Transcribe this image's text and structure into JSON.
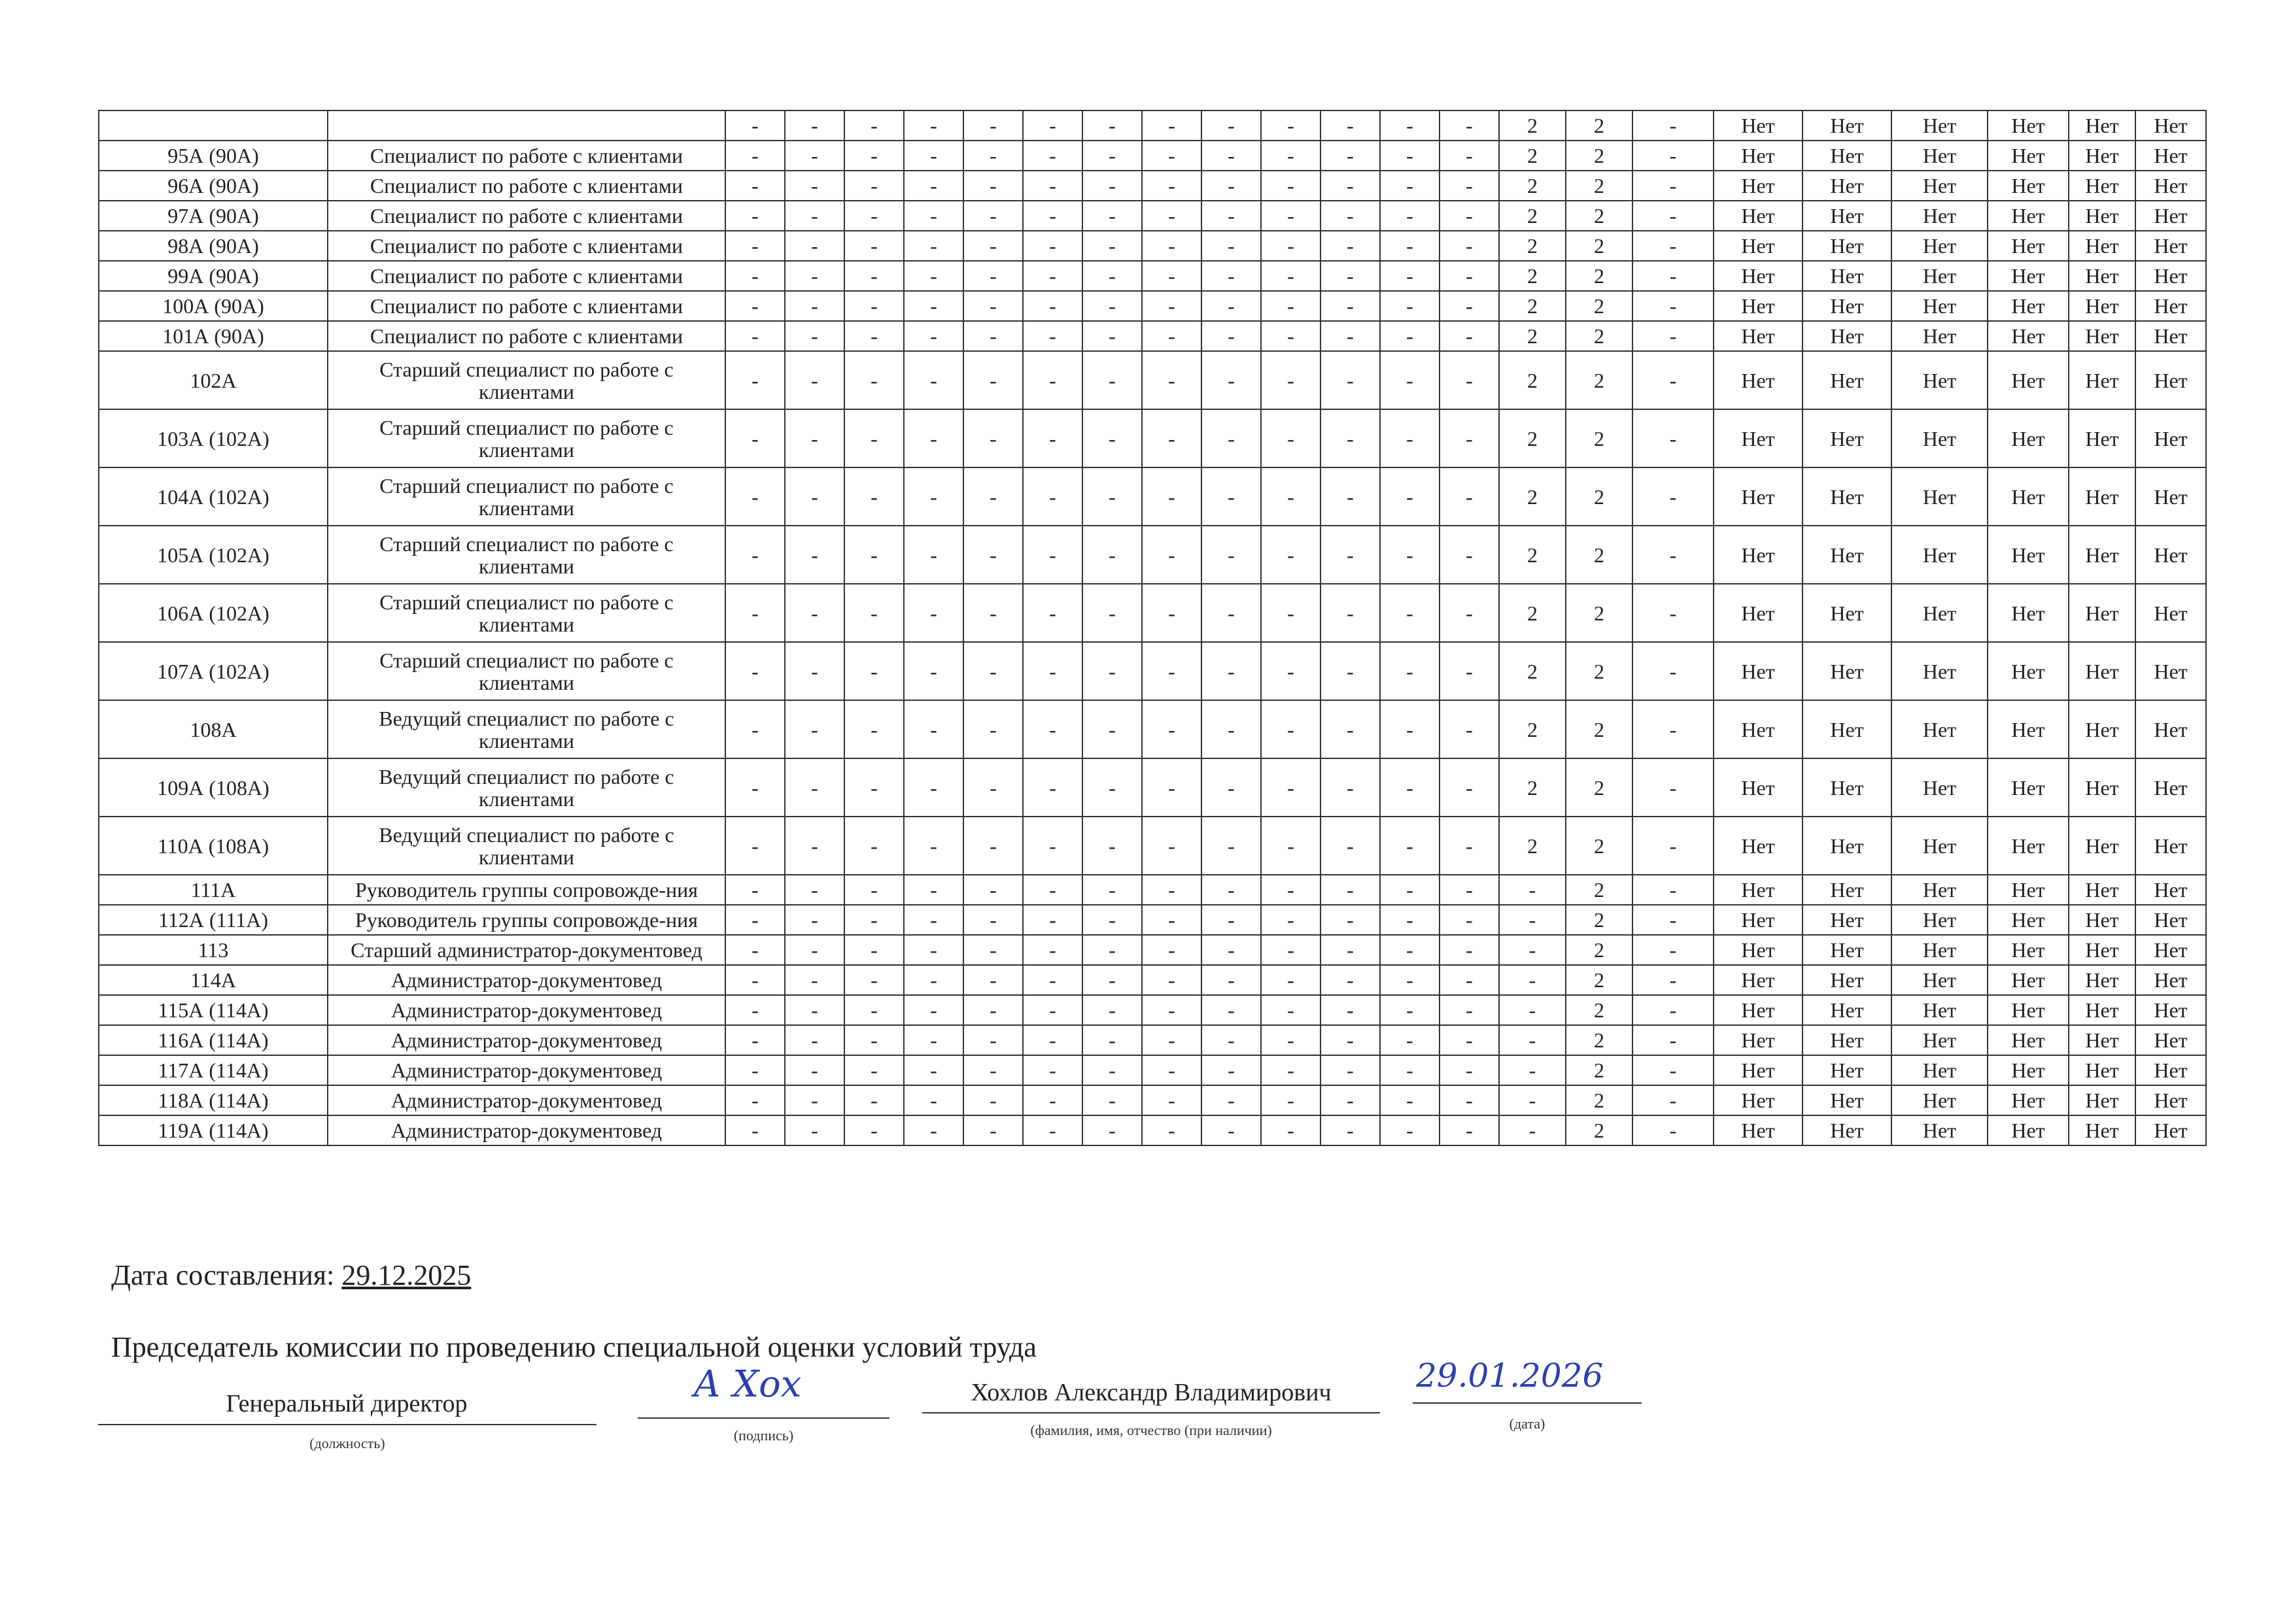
{
  "table": {
    "rows": [
      {
        "id": "",
        "position": "",
        "cells": [
          "-",
          "-",
          "-",
          "-",
          "-",
          "-",
          "-",
          "-",
          "-",
          "-",
          "-",
          "-",
          "-",
          "2",
          "2",
          "-",
          "Нет",
          "Нет",
          "Нет",
          "Нет",
          "Нет",
          "Нет"
        ]
      },
      {
        "id": "95А (90А)",
        "position": "Специалист по работе с клиентами",
        "cells": [
          "-",
          "-",
          "-",
          "-",
          "-",
          "-",
          "-",
          "-",
          "-",
          "-",
          "-",
          "-",
          "-",
          "2",
          "2",
          "-",
          "Нет",
          "Нет",
          "Нет",
          "Нет",
          "Нет",
          "Нет"
        ]
      },
      {
        "id": "96А (90А)",
        "position": "Специалист по работе с клиентами",
        "cells": [
          "-",
          "-",
          "-",
          "-",
          "-",
          "-",
          "-",
          "-",
          "-",
          "-",
          "-",
          "-",
          "-",
          "2",
          "2",
          "-",
          "Нет",
          "Нет",
          "Нет",
          "Нет",
          "Нет",
          "Нет"
        ]
      },
      {
        "id": "97А (90А)",
        "position": "Специалист по работе с клиентами",
        "cells": [
          "-",
          "-",
          "-",
          "-",
          "-",
          "-",
          "-",
          "-",
          "-",
          "-",
          "-",
          "-",
          "-",
          "2",
          "2",
          "-",
          "Нет",
          "Нет",
          "Нет",
          "Нет",
          "Нет",
          "Нет"
        ]
      },
      {
        "id": "98А (90А)",
        "position": "Специалист по работе с клиентами",
        "cells": [
          "-",
          "-",
          "-",
          "-",
          "-",
          "-",
          "-",
          "-",
          "-",
          "-",
          "-",
          "-",
          "-",
          "2",
          "2",
          "-",
          "Нет",
          "Нет",
          "Нет",
          "Нет",
          "Нет",
          "Нет"
        ]
      },
      {
        "id": "99А (90А)",
        "position": "Специалист по работе с клиентами",
        "cells": [
          "-",
          "-",
          "-",
          "-",
          "-",
          "-",
          "-",
          "-",
          "-",
          "-",
          "-",
          "-",
          "-",
          "2",
          "2",
          "-",
          "Нет",
          "Нет",
          "Нет",
          "Нет",
          "Нет",
          "Нет"
        ]
      },
      {
        "id": "100А (90А)",
        "position": "Специалист по работе с клиентами",
        "cells": [
          "-",
          "-",
          "-",
          "-",
          "-",
          "-",
          "-",
          "-",
          "-",
          "-",
          "-",
          "-",
          "-",
          "2",
          "2",
          "-",
          "Нет",
          "Нет",
          "Нет",
          "Нет",
          "Нет",
          "Нет"
        ]
      },
      {
        "id": "101А (90А)",
        "position": "Специалист по работе с клиентами",
        "cells": [
          "-",
          "-",
          "-",
          "-",
          "-",
          "-",
          "-",
          "-",
          "-",
          "-",
          "-",
          "-",
          "-",
          "2",
          "2",
          "-",
          "Нет",
          "Нет",
          "Нет",
          "Нет",
          "Нет",
          "Нет"
        ]
      },
      {
        "id": "102А",
        "position": "Старший специалист по работе с клиентами",
        "cells": [
          "-",
          "-",
          "-",
          "-",
          "-",
          "-",
          "-",
          "-",
          "-",
          "-",
          "-",
          "-",
          "-",
          "2",
          "2",
          "-",
          "Нет",
          "Нет",
          "Нет",
          "Нет",
          "Нет",
          "Нет"
        ]
      },
      {
        "id": "103А (102А)",
        "position": "Старший специалист по работе с клиентами",
        "cells": [
          "-",
          "-",
          "-",
          "-",
          "-",
          "-",
          "-",
          "-",
          "-",
          "-",
          "-",
          "-",
          "-",
          "2",
          "2",
          "-",
          "Нет",
          "Нет",
          "Нет",
          "Нет",
          "Нет",
          "Нет"
        ]
      },
      {
        "id": "104А (102А)",
        "position": "Старший специалист по работе с клиентами",
        "cells": [
          "-",
          "-",
          "-",
          "-",
          "-",
          "-",
          "-",
          "-",
          "-",
          "-",
          "-",
          "-",
          "-",
          "2",
          "2",
          "-",
          "Нет",
          "Нет",
          "Нет",
          "Нет",
          "Нет",
          "Нет"
        ]
      },
      {
        "id": "105А (102А)",
        "position": "Старший специалист по работе с клиентами",
        "cells": [
          "-",
          "-",
          "-",
          "-",
          "-",
          "-",
          "-",
          "-",
          "-",
          "-",
          "-",
          "-",
          "-",
          "2",
          "2",
          "-",
          "Нет",
          "Нет",
          "Нет",
          "Нет",
          "Нет",
          "Нет"
        ]
      },
      {
        "id": "106А (102А)",
        "position": "Старший специалист по работе с клиентами",
        "cells": [
          "-",
          "-",
          "-",
          "-",
          "-",
          "-",
          "-",
          "-",
          "-",
          "-",
          "-",
          "-",
          "-",
          "2",
          "2",
          "-",
          "Нет",
          "Нет",
          "Нет",
          "Нет",
          "Нет",
          "Нет"
        ]
      },
      {
        "id": "107А (102А)",
        "position": "Старший специалист по работе с клиентами",
        "cells": [
          "-",
          "-",
          "-",
          "-",
          "-",
          "-",
          "-",
          "-",
          "-",
          "-",
          "-",
          "-",
          "-",
          "2",
          "2",
          "-",
          "Нет",
          "Нет",
          "Нет",
          "Нет",
          "Нет",
          "Нет"
        ]
      },
      {
        "id": "108А",
        "position": "Ведущий специалист по работе с клиентами",
        "cells": [
          "-",
          "-",
          "-",
          "-",
          "-",
          "-",
          "-",
          "-",
          "-",
          "-",
          "-",
          "-",
          "-",
          "2",
          "2",
          "-",
          "Нет",
          "Нет",
          "Нет",
          "Нет",
          "Нет",
          "Нет"
        ]
      },
      {
        "id": "109А (108А)",
        "position": "Ведущий специалист по работе с клиентами",
        "cells": [
          "-",
          "-",
          "-",
          "-",
          "-",
          "-",
          "-",
          "-",
          "-",
          "-",
          "-",
          "-",
          "-",
          "2",
          "2",
          "-",
          "Нет",
          "Нет",
          "Нет",
          "Нет",
          "Нет",
          "Нет"
        ]
      },
      {
        "id": "110А (108А)",
        "position": "Ведущий специалист по работе с клиентами",
        "cells": [
          "-",
          "-",
          "-",
          "-",
          "-",
          "-",
          "-",
          "-",
          "-",
          "-",
          "-",
          "-",
          "-",
          "2",
          "2",
          "-",
          "Нет",
          "Нет",
          "Нет",
          "Нет",
          "Нет",
          "Нет"
        ]
      },
      {
        "id": "111А",
        "position": "Руководитель группы сопровожде-ния",
        "cells": [
          "-",
          "-",
          "-",
          "-",
          "-",
          "-",
          "-",
          "-",
          "-",
          "-",
          "-",
          "-",
          "-",
          "-",
          "2",
          "-",
          "Нет",
          "Нет",
          "Нет",
          "Нет",
          "Нет",
          "Нет"
        ]
      },
      {
        "id": "112А (111А)",
        "position": "Руководитель группы сопровожде-ния",
        "cells": [
          "-",
          "-",
          "-",
          "-",
          "-",
          "-",
          "-",
          "-",
          "-",
          "-",
          "-",
          "-",
          "-",
          "-",
          "2",
          "-",
          "Нет",
          "Нет",
          "Нет",
          "Нет",
          "Нет",
          "Нет"
        ]
      },
      {
        "id": "113",
        "position": "Старший администратор-документовед",
        "cells": [
          "-",
          "-",
          "-",
          "-",
          "-",
          "-",
          "-",
          "-",
          "-",
          "-",
          "-",
          "-",
          "-",
          "-",
          "2",
          "-",
          "Нет",
          "Нет",
          "Нет",
          "Нет",
          "Нет",
          "Нет"
        ]
      },
      {
        "id": "114А",
        "position": "Администратор-документовед",
        "cells": [
          "-",
          "-",
          "-",
          "-",
          "-",
          "-",
          "-",
          "-",
          "-",
          "-",
          "-",
          "-",
          "-",
          "-",
          "2",
          "-",
          "Нет",
          "Нет",
          "Нет",
          "Нет",
          "Нет",
          "Нет"
        ]
      },
      {
        "id": "115А (114А)",
        "position": "Администратор-документовед",
        "cells": [
          "-",
          "-",
          "-",
          "-",
          "-",
          "-",
          "-",
          "-",
          "-",
          "-",
          "-",
          "-",
          "-",
          "-",
          "2",
          "-",
          "Нет",
          "Нет",
          "Нет",
          "Нет",
          "Нет",
          "Нет"
        ]
      },
      {
        "id": "116А (114А)",
        "position": "Администратор-документовед",
        "cells": [
          "-",
          "-",
          "-",
          "-",
          "-",
          "-",
          "-",
          "-",
          "-",
          "-",
          "-",
          "-",
          "-",
          "-",
          "2",
          "-",
          "Нет",
          "Нет",
          "Нет",
          "Нет",
          "Нет",
          "Нет"
        ]
      },
      {
        "id": "117А (114А)",
        "position": "Администратор-документовед",
        "cells": [
          "-",
          "-",
          "-",
          "-",
          "-",
          "-",
          "-",
          "-",
          "-",
          "-",
          "-",
          "-",
          "-",
          "-",
          "2",
          "-",
          "Нет",
          "Нет",
          "Нет",
          "Нет",
          "Нет",
          "Нет"
        ]
      },
      {
        "id": "118А (114А)",
        "position": "Администратор-документовед",
        "cells": [
          "-",
          "-",
          "-",
          "-",
          "-",
          "-",
          "-",
          "-",
          "-",
          "-",
          "-",
          "-",
          "-",
          "-",
          "2",
          "-",
          "Нет",
          "Нет",
          "Нет",
          "Нет",
          "Нет",
          "Нет"
        ]
      },
      {
        "id": "119А (114А)",
        "position": "Администратор-документовед",
        "cells": [
          "-",
          "-",
          "-",
          "-",
          "-",
          "-",
          "-",
          "-",
          "-",
          "-",
          "-",
          "-",
          "-",
          "-",
          "2",
          "-",
          "Нет",
          "Нет",
          "Нет",
          "Нет",
          "Нет",
          "Нет"
        ]
      }
    ]
  },
  "footer": {
    "date_label": "Дата составления:",
    "date_value": "29.12.2025",
    "chairman_label": "Председатель комиссии по проведению специальной оценки условий труда",
    "position_value": "Генеральный директор",
    "position_caption": "(должность)",
    "signature_caption": "(подпись)",
    "signature_text": "А Хох",
    "name_value": "Хохлов Александр Владимирович",
    "name_caption": "(фамилия, имя, отчество (при наличии)",
    "signed_date": "29.01.2026",
    "signed_date_caption": "(дата)"
  },
  "colors": {
    "ink": "#222222",
    "signature": "#2a3fb0"
  }
}
